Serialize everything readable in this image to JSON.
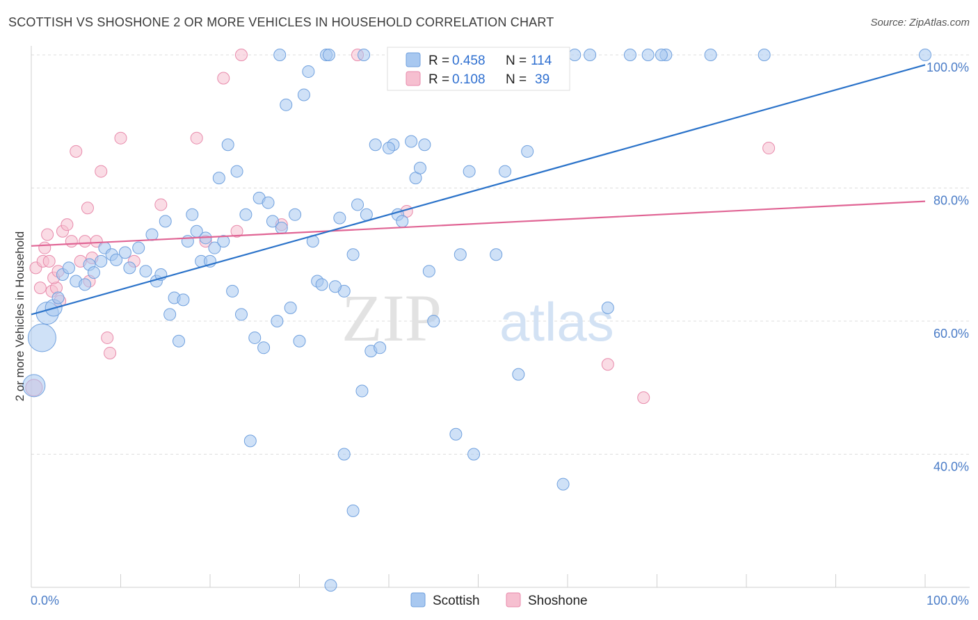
{
  "title": "SCOTTISH VS SHOSHONE 2 OR MORE VEHICLES IN HOUSEHOLD CORRELATION CHART",
  "source": "Source: ZipAtlas.com",
  "watermark": {
    "zip": "ZIP",
    "atlas": "atlas"
  },
  "legend": {
    "r_label": "R =",
    "n_label": "N =",
    "scottish": {
      "r": "0.458",
      "n": "114"
    },
    "shoshone": {
      "r": "0.108",
      "n": "39"
    }
  },
  "bottom_legend": {
    "scottish": "Scottish",
    "shoshone": "Shoshone"
  },
  "colors": {
    "scottish_fill": "#a8c8f0",
    "scottish_stroke": "#6fa0de",
    "scottish_line": "#2a72c9",
    "shoshone_fill": "#f6bfd0",
    "shoshone_stroke": "#e88aab",
    "shoshone_line": "#e06494",
    "tick_label": "#4a7cc7",
    "grid": "#dddddd"
  },
  "chart_data": {
    "type": "scatter",
    "title": "SCOTTISH VS SHOSHONE 2 OR MORE VEHICLES IN HOUSEHOLD CORRELATION CHART",
    "xlabel": "",
    "ylabel": "2 or more Vehicles in Household",
    "xlim": [
      0,
      100
    ],
    "ylim": [
      20,
      102
    ],
    "x_tick_labels": [
      "0.0%",
      "100.0%"
    ],
    "y_ticks": [
      40,
      60,
      80,
      100
    ],
    "y_tick_labels": [
      "40.0%",
      "60.0%",
      "80.0%",
      "100.0%"
    ],
    "grid": true,
    "legend_position": "top-center",
    "series": [
      {
        "name": "Scottish",
        "r": 0.458,
        "n": 114,
        "trend": {
          "x": [
            0,
            100
          ],
          "y": [
            61.0,
            98.5
          ]
        },
        "points": [
          [
            0.3,
            50.3,
            3
          ],
          [
            1.2,
            57.5,
            4
          ],
          [
            1.8,
            61.2,
            3
          ],
          [
            2.5,
            62.0,
            2
          ],
          [
            3.0,
            63.5,
            1
          ],
          [
            3.5,
            67.0,
            1
          ],
          [
            4.2,
            68.0,
            1
          ],
          [
            5.0,
            66.0,
            1
          ],
          [
            6.0,
            65.5,
            1
          ],
          [
            6.5,
            68.5,
            1
          ],
          [
            7.0,
            67.3,
            1
          ],
          [
            7.8,
            69.0,
            1
          ],
          [
            8.2,
            71.0,
            1
          ],
          [
            9.0,
            70.0,
            1
          ],
          [
            9.5,
            69.2,
            1
          ],
          [
            10.5,
            70.3,
            1
          ],
          [
            11.0,
            68.0,
            1
          ],
          [
            12.0,
            71.0,
            1
          ],
          [
            12.8,
            67.5,
            1
          ],
          [
            13.5,
            73.0,
            1
          ],
          [
            14.0,
            66.0,
            1
          ],
          [
            14.5,
            67.0,
            1
          ],
          [
            15.0,
            75.0,
            1
          ],
          [
            15.5,
            61.0,
            1
          ],
          [
            16.0,
            63.5,
            1
          ],
          [
            16.5,
            57.0,
            1
          ],
          [
            17.0,
            63.2,
            1
          ],
          [
            17.5,
            72.0,
            1
          ],
          [
            18.0,
            76.0,
            1
          ],
          [
            18.5,
            73.5,
            1
          ],
          [
            19.0,
            69.0,
            1
          ],
          [
            19.5,
            72.5,
            1
          ],
          [
            20.0,
            69.0,
            1
          ],
          [
            20.5,
            71.0,
            1
          ],
          [
            21.0,
            81.5,
            1
          ],
          [
            21.5,
            72.0,
            1
          ],
          [
            22.0,
            86.5,
            1
          ],
          [
            22.5,
            64.5,
            1
          ],
          [
            23.0,
            82.5,
            1
          ],
          [
            23.5,
            61.0,
            1
          ],
          [
            24.0,
            76.0,
            1
          ],
          [
            25.0,
            57.5,
            1
          ],
          [
            25.5,
            78.5,
            1
          ],
          [
            26.0,
            56.0,
            1
          ],
          [
            26.5,
            77.8,
            1
          ],
          [
            27.0,
            75.0,
            1
          ],
          [
            27.5,
            60.0,
            1
          ],
          [
            28.0,
            74.0,
            1
          ],
          [
            28.5,
            92.5,
            1
          ],
          [
            29.0,
            62.0,
            1
          ],
          [
            29.5,
            76.0,
            1
          ],
          [
            30.0,
            57.0,
            1
          ],
          [
            30.5,
            94.0,
            1
          ],
          [
            31.0,
            97.5,
            1
          ],
          [
            31.5,
            72.0,
            1
          ],
          [
            32.0,
            66.0,
            1
          ],
          [
            32.5,
            65.5,
            1
          ],
          [
            33.0,
            100.0,
            1
          ],
          [
            33.3,
            100.0,
            1
          ],
          [
            34.5,
            75.5,
            1
          ],
          [
            35.0,
            64.5,
            1
          ],
          [
            36.0,
            70.0,
            1
          ],
          [
            36.5,
            77.5,
            1
          ],
          [
            37.5,
            76.0,
            1
          ],
          [
            37.0,
            49.5,
            1
          ],
          [
            38.0,
            55.5,
            1
          ],
          [
            38.5,
            86.5,
            1
          ],
          [
            39.0,
            56.0,
            1
          ],
          [
            40.5,
            86.5,
            1
          ],
          [
            41.0,
            76.0,
            1
          ],
          [
            41.5,
            75.0,
            1
          ],
          [
            42.0,
            100.0,
            1
          ],
          [
            42.5,
            87.0,
            1
          ],
          [
            43.0,
            81.5,
            1
          ],
          [
            43.5,
            83.0,
            1
          ],
          [
            44.0,
            86.5,
            1
          ],
          [
            44.5,
            67.5,
            1
          ],
          [
            45.0,
            60.0,
            1
          ],
          [
            47.0,
            96.0,
            1
          ],
          [
            47.5,
            43.0,
            1
          ],
          [
            48.0,
            70.0,
            1
          ],
          [
            49.0,
            82.5,
            1
          ],
          [
            49.5,
            40.0,
            1
          ],
          [
            50.0,
            100.0,
            1
          ],
          [
            52.0,
            70.0,
            1
          ],
          [
            53.0,
            82.5,
            1
          ],
          [
            53.5,
            100.0,
            1
          ],
          [
            54.5,
            52.0,
            1
          ],
          [
            55.5,
            85.5,
            1
          ],
          [
            57.5,
            100.0,
            1
          ],
          [
            59.5,
            35.5,
            1
          ],
          [
            62.5,
            100.0,
            1
          ],
          [
            64.5,
            62.0,
            1
          ],
          [
            67.0,
            100.0,
            1
          ],
          [
            69.0,
            100.0,
            1
          ],
          [
            71.0,
            100.0,
            1
          ],
          [
            76.0,
            100.0,
            1
          ],
          [
            82.0,
            100.0,
            1
          ],
          [
            100.0,
            100.0,
            1
          ],
          [
            33.5,
            20.3,
            1
          ],
          [
            36.0,
            31.5,
            1
          ],
          [
            24.5,
            42.0,
            1
          ],
          [
            35.0,
            40.0,
            1
          ],
          [
            40.0,
            86.0,
            1
          ],
          [
            34.0,
            65.2,
            1
          ],
          [
            37.2,
            100.0,
            1
          ],
          [
            27.8,
            100.0,
            1
          ],
          [
            54.0,
            100.0,
            1
          ],
          [
            60.8,
            100.0,
            1
          ],
          [
            70.5,
            100.0,
            1
          ]
        ]
      },
      {
        "name": "Shoshone",
        "r": 0.108,
        "n": 39,
        "trend": {
          "x": [
            0,
            100
          ],
          "y": [
            71.3,
            78.0
          ]
        },
        "points": [
          [
            0.3,
            50.0,
            2
          ],
          [
            0.5,
            68.0,
            1
          ],
          [
            1.0,
            65.0,
            1
          ],
          [
            1.3,
            69.0,
            1
          ],
          [
            1.8,
            73.0,
            1
          ],
          [
            2.0,
            69.0,
            1
          ],
          [
            2.3,
            64.5,
            1
          ],
          [
            2.8,
            65.0,
            1
          ],
          [
            3.2,
            63.0,
            1
          ],
          [
            3.5,
            73.5,
            1
          ],
          [
            4.0,
            74.5,
            1
          ],
          [
            4.5,
            72.0,
            1
          ],
          [
            5.0,
            85.5,
            1
          ],
          [
            5.5,
            69.0,
            1
          ],
          [
            6.0,
            72.0,
            1
          ],
          [
            6.3,
            77.0,
            1
          ],
          [
            6.8,
            69.5,
            1
          ],
          [
            7.3,
            72.0,
            1
          ],
          [
            7.8,
            82.5,
            1
          ],
          [
            8.5,
            57.5,
            1
          ],
          [
            8.8,
            55.2,
            1
          ],
          [
            10.0,
            87.5,
            1
          ],
          [
            11.5,
            69.0,
            1
          ],
          [
            14.5,
            77.5,
            1
          ],
          [
            18.5,
            87.5,
            1
          ],
          [
            19.5,
            72.0,
            1
          ],
          [
            21.5,
            96.5,
            1
          ],
          [
            23.0,
            73.5,
            1
          ],
          [
            23.5,
            100.0,
            1
          ],
          [
            28.0,
            74.5,
            1
          ],
          [
            36.5,
            100.0,
            1
          ],
          [
            42.0,
            76.5,
            1
          ],
          [
            64.5,
            53.5,
            1
          ],
          [
            68.5,
            48.5,
            1
          ],
          [
            82.5,
            86.0,
            1
          ],
          [
            2.5,
            66.5,
            1
          ],
          [
            6.5,
            66.0,
            1
          ],
          [
            3.0,
            67.5,
            1
          ],
          [
            1.5,
            71.0,
            1
          ]
        ]
      }
    ]
  }
}
